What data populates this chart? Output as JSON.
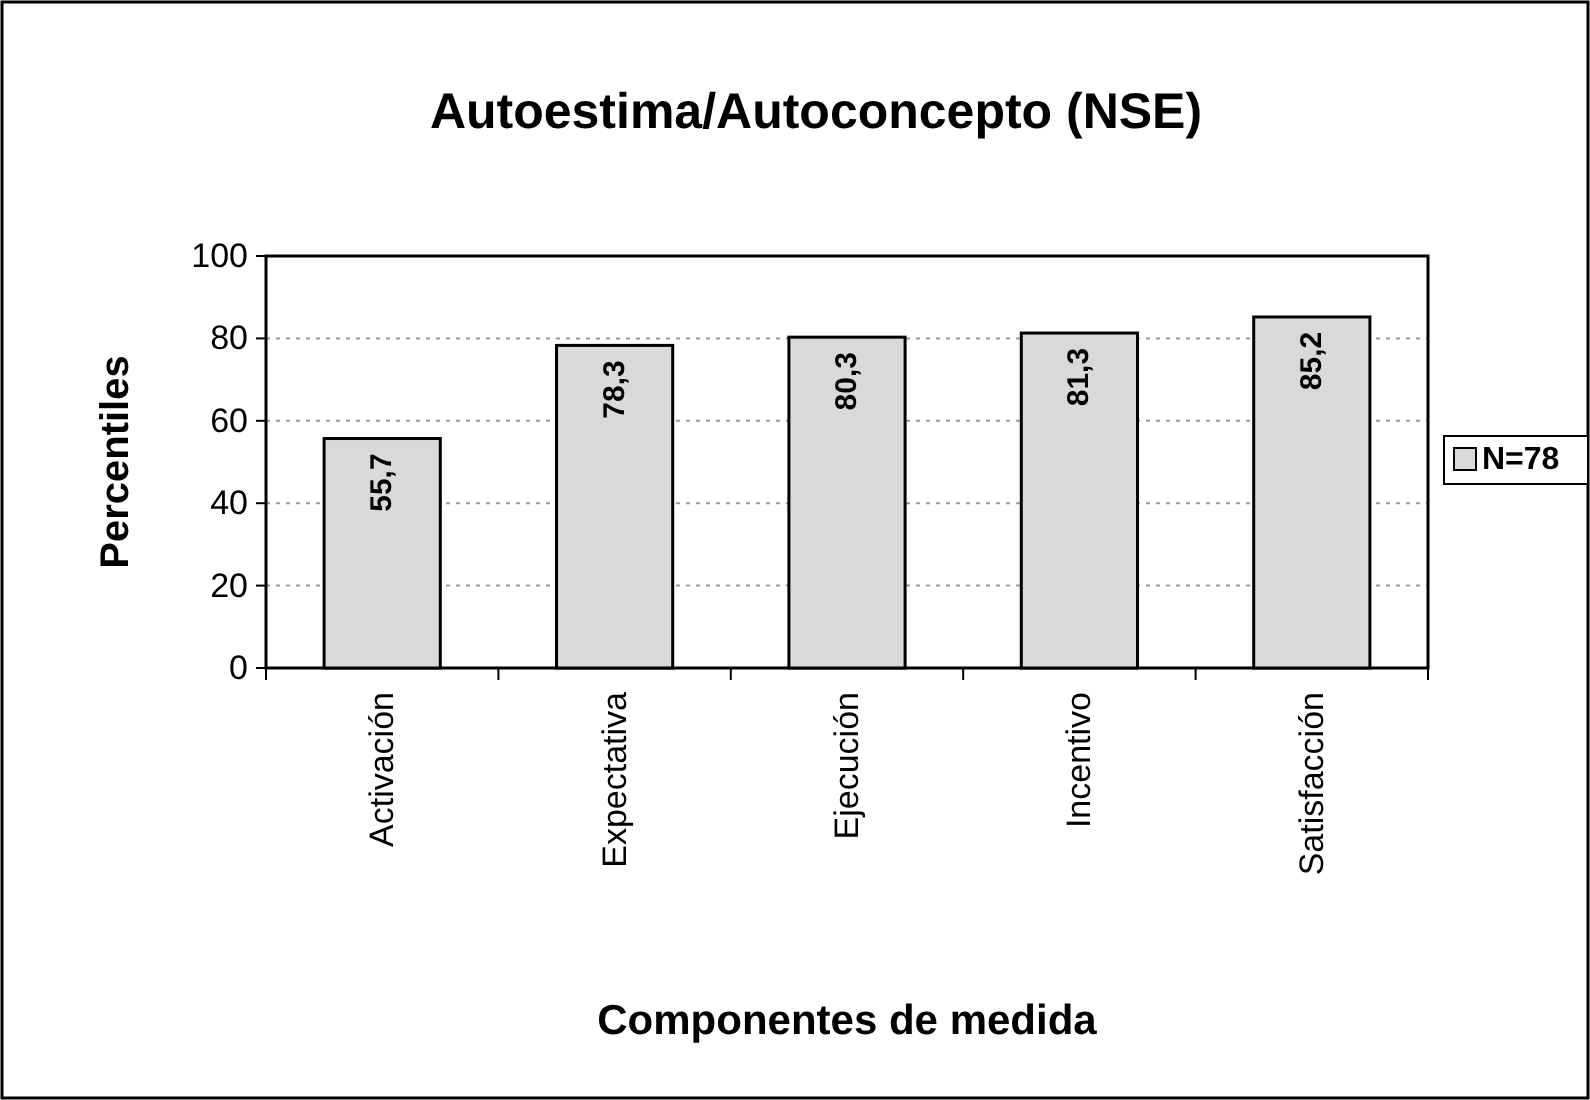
{
  "chart_data": {
    "type": "bar",
    "title": "Autoestima/Autoconcepto (NSE)",
    "xlabel": "Componentes de medida",
    "ylabel": "Percentiles",
    "categories": [
      "Activación",
      "Expectativa",
      "Ejecución",
      "Incentivo",
      "Satisfacción"
    ],
    "series": [
      {
        "name": "N=78",
        "color": "#d9d9d9",
        "values": [
          55.7,
          78.3,
          80.3,
          81.3,
          85.2
        ]
      }
    ],
    "value_labels": [
      "55,7",
      "78,3",
      "80,3",
      "81,3",
      "85,2"
    ],
    "ylim": [
      0,
      100
    ],
    "yticks": [
      0,
      20,
      40,
      60,
      80,
      100
    ],
    "grid": "y",
    "legend": "right"
  }
}
